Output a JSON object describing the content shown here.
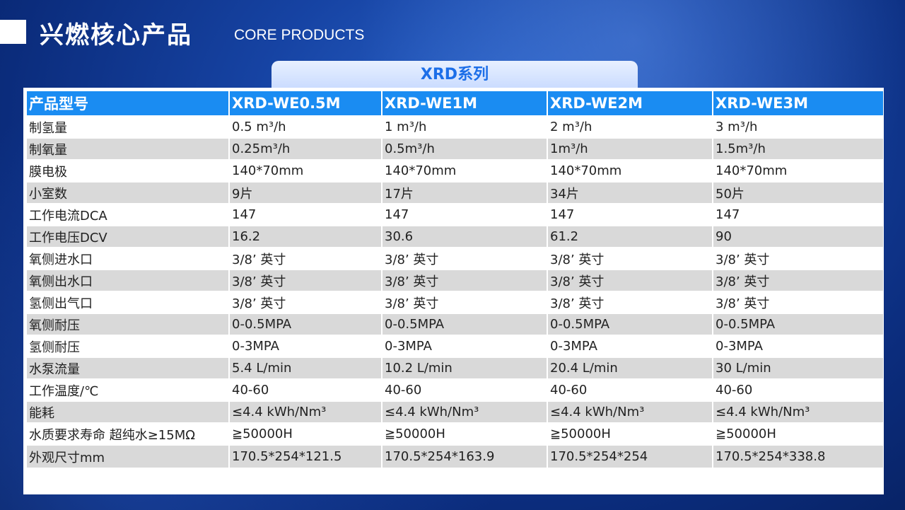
{
  "header": {
    "title_cn": "兴燃核心产品",
    "title_en": "CORE PRODUCTS"
  },
  "series": {
    "label": "XRD系列"
  },
  "table": {
    "headers": [
      "产品型号",
      "XRD-WE0.5M",
      "XRD-WE1M",
      "XRD-WE2M",
      "XRD-WE3M"
    ],
    "rows": [
      [
        "制氢量",
        "0.5 m³/h",
        "1 m³/h",
        "2 m³/h",
        "3 m³/h"
      ],
      [
        "制氧量",
        "0.25m³/h",
        "0.5m³/h",
        "1m³/h",
        "1.5m³/h"
      ],
      [
        "膜电极",
        "140*70mm",
        "140*70mm",
        "140*70mm",
        "140*70mm"
      ],
      [
        "小室数",
        "9片",
        "17片",
        "34片",
        "50片"
      ],
      [
        "工作电流DCA",
        "147",
        "147",
        "147",
        "147"
      ],
      [
        "工作电压DCV",
        "16.2",
        "30.6",
        "61.2",
        "90"
      ],
      [
        "氧侧进水口",
        "3/8’ 英寸",
        "3/8’ 英寸",
        "3/8’ 英寸",
        "3/8’ 英寸"
      ],
      [
        "氧侧出水口",
        "3/8’ 英寸",
        "3/8’ 英寸",
        "3/8’ 英寸",
        "3/8’ 英寸"
      ],
      [
        "氢侧出气口",
        "3/8’ 英寸",
        "3/8’ 英寸",
        "3/8’ 英寸",
        "3/8’ 英寸"
      ],
      [
        "氧侧耐压",
        "0-0.5MPA",
        "0-0.5MPA",
        "0-0.5MPA",
        "0-0.5MPA"
      ],
      [
        "氢侧耐压",
        "0-3MPA",
        "0-3MPA",
        "0-3MPA",
        "0-3MPA"
      ],
      [
        "水泵流量",
        "5.4 L/min",
        "10.2 L/min",
        "20.4 L/min",
        "30 L/min"
      ],
      [
        "工作温度/℃",
        "40-60",
        "40-60",
        "40-60",
        "40-60"
      ],
      [
        "能耗",
        "≤4.4 kWh/Nm³",
        "≤4.4 kWh/Nm³",
        "≤4.4 kWh/Nm³",
        "≤4.4 kWh/Nm³"
      ],
      [
        "水质要求寿命 超纯水≥15MΩ",
        "≧50000H",
        "≧50000H",
        "≧50000H",
        "≧50000H"
      ],
      [
        "外观尺寸mm",
        "170.5*254*121.5",
        "170.5*254*163.9",
        "170.5*254*254",
        "170.5*254*338.8"
      ]
    ]
  },
  "colors": {
    "background": "#1643a3",
    "header_cell": "#1a8cf2",
    "row_alt": "#d9d9d9",
    "series_text": "#1c6ee8"
  }
}
